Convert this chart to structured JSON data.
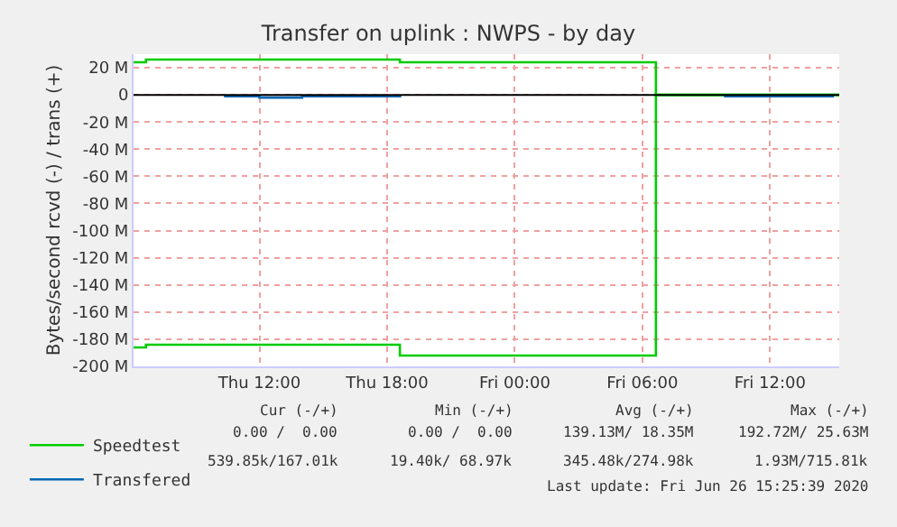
{
  "chart_data": {
    "type": "step",
    "title": "Transfer on uplink : NWPS - by day",
    "ylabel": "Bytes/second rcvd (-) / trans (+)",
    "xlim": [
      "2020-06-25T06:05",
      "2020-06-26T15:15"
    ],
    "xticks": [
      {
        "value": "2020-06-25T12:00",
        "label": "Thu 12:00"
      },
      {
        "value": "2020-06-25T18:00",
        "label": "Thu 18:00"
      },
      {
        "value": "2020-06-26T00:00",
        "label": "Fri 00:00"
      },
      {
        "value": "2020-06-26T06:00",
        "label": "Fri 06:00"
      },
      {
        "value": "2020-06-26T12:00",
        "label": "Fri 12:00"
      }
    ],
    "ylim": [
      -200,
      30
    ],
    "yticks": [
      {
        "value": 20,
        "label": "20 M"
      },
      0,
      {
        "value": -20,
        "label": "-20 M"
      },
      {
        "value": -40,
        "label": "-40 M"
      },
      {
        "value": -60,
        "label": "-60 M"
      },
      {
        "value": -80,
        "label": "-80 M"
      },
      {
        "value": -100,
        "label": "-100 M"
      },
      {
        "value": -120,
        "label": "-120 M"
      },
      {
        "value": -140,
        "label": "-140 M"
      },
      {
        "value": -160,
        "label": "-160 M"
      },
      {
        "value": -180,
        "label": "-180 M"
      },
      {
        "value": -200,
        "label": "-200 M"
      }
    ],
    "series": [
      {
        "name": "Speedtest",
        "color": "#00cc00",
        "x": [
          "2020-06-25T06:05",
          "2020-06-25T06:40",
          "2020-06-25T18:36",
          "2020-06-26T06:38",
          "2020-06-26T15:15"
        ],
        "values": [
          -186,
          -184,
          -192,
          0,
          0
        ]
      },
      {
        "color": "#00cc00",
        "x": [
          "2020-06-25T06:05",
          "2020-06-25T06:40",
          "2020-06-25T18:36",
          "2020-06-26T06:38",
          "2020-06-26T15:15"
        ],
        "values": [
          24,
          26,
          24,
          0,
          0
        ]
      },
      {
        "name": "Transfered",
        "color": "#0066b3",
        "x": [
          "2020-06-25T10:20",
          "2020-06-25T12:00",
          "2020-06-25T14:00",
          "2020-06-25T18:40",
          "2020-06-26T00:00",
          "2020-06-26T09:50",
          "2020-06-26T12:00",
          "2020-06-26T15:00"
        ],
        "values": [
          -1,
          -2,
          -1,
          -1,
          null,
          -1,
          -1,
          -1
        ]
      }
    ],
    "ref_lines": [
      {
        "axis": "y",
        "value": 0,
        "color": "#000000"
      }
    ],
    "grid": true,
    "legend": "bottom",
    "annotations": [
      "Cur (-/+)",
      "Min (-/+)",
      "Avg (-/+)",
      "Max (-/+)",
      "0.00 /  0.00",
      "0.00 /  0.00",
      "139.13M/ 18.35M",
      "192.72M/ 25.63M",
      "539.85k/167.01k",
      "19.40k/ 68.97k",
      "345.48k/274.98k",
      "1.93M/715.81k",
      "Last update: Fri Jun 26 15:25:39 2020"
    ]
  }
}
